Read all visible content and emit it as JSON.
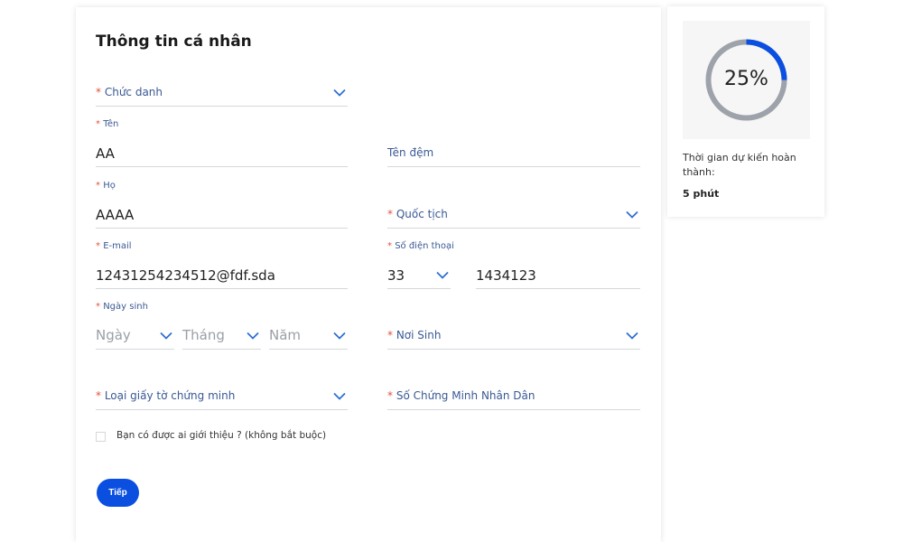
{
  "form": {
    "title": "Thông tin cá nhân",
    "required_mark": "*",
    "job_title": {
      "label": "Chức danh"
    },
    "first_name": {
      "label": "Tên",
      "value": "AA"
    },
    "middle_name": {
      "label": "Tên đệm"
    },
    "last_name": {
      "label": "Họ",
      "value": "AAAA"
    },
    "nationality": {
      "label": "Quốc tịch"
    },
    "email": {
      "label": "E-mail",
      "value": "12431254234512@fdf.sda"
    },
    "phone": {
      "label": "Số điện thoại",
      "code": "33",
      "number": "1434123"
    },
    "dob": {
      "label": "Ngày sinh",
      "day": "Ngày",
      "month": "Tháng",
      "year": "Năm"
    },
    "birthplace": {
      "label": "Nơi Sinh"
    },
    "id_type": {
      "label": "Loại giấy tờ chứng minh"
    },
    "id_number": {
      "label": "Số Chứng Minh Nhân Dân"
    },
    "referral": {
      "label": "Bạn có được ai giới thiệu ? (không bắt buộc)",
      "checked": false
    },
    "next_label": "Tiếp"
  },
  "progress": {
    "percent": 25,
    "percent_label": "25%",
    "time_label": "Thời gian dự kiến hoàn thành:",
    "time_value": "5 phút",
    "accent": "#0a4fe0",
    "track": "#9ea3ab"
  }
}
